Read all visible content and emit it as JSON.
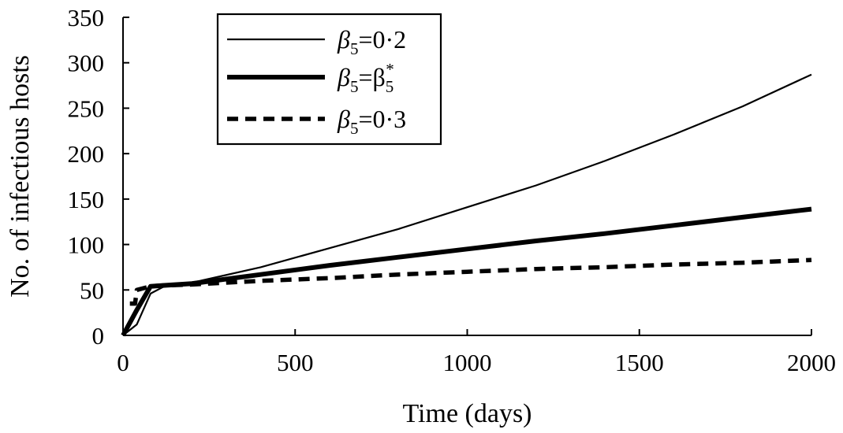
{
  "chart_data": {
    "type": "line",
    "title": "",
    "xlabel": "Time (days)",
    "ylabel": "No. of infectious hosts",
    "xlim": [
      0,
      2000
    ],
    "ylim": [
      0,
      350
    ],
    "xticks": [
      0,
      500,
      1000,
      1500,
      2000
    ],
    "yticks": [
      0,
      50,
      100,
      150,
      200,
      250,
      300,
      350
    ],
    "grid": false,
    "legend_position": "top-left",
    "series": [
      {
        "name": "β5=0·2",
        "style": "thin-solid",
        "x": [
          0,
          40,
          80,
          120,
          200,
          400,
          600,
          800,
          1000,
          1200,
          1400,
          1600,
          1800,
          2000
        ],
        "y": [
          0,
          12,
          46,
          54,
          58,
          75,
          96,
          117,
          141,
          165,
          192,
          221,
          252,
          287
        ]
      },
      {
        "name": "β5=β5*",
        "style": "thick-solid",
        "x": [
          0,
          40,
          80,
          120,
          200,
          400,
          600,
          800,
          1000,
          1200,
          1400,
          1600,
          1800,
          2000
        ],
        "y": [
          0,
          28,
          54,
          55,
          57,
          67,
          77,
          86,
          95,
          104,
          112,
          121,
          130,
          139
        ]
      },
      {
        "name": "β5=0·3",
        "style": "dashed",
        "x": [
          20,
          35,
          40,
          80,
          120,
          200,
          400,
          600,
          800,
          1000,
          1200,
          1400,
          1600,
          1800,
          2000
        ],
        "y": [
          35,
          35,
          50,
          54,
          55,
          56,
          60,
          63,
          67,
          70,
          73,
          75,
          78,
          80,
          83
        ]
      }
    ],
    "legend": [
      {
        "symbol": "β",
        "sub": "5",
        "rest": "=0·2"
      },
      {
        "symbol": "β",
        "sub": "5",
        "rest": "=β",
        "sub2": "5",
        "sup2": "*"
      },
      {
        "symbol": "β",
        "sub": "5",
        "rest": "=0·3"
      }
    ]
  }
}
